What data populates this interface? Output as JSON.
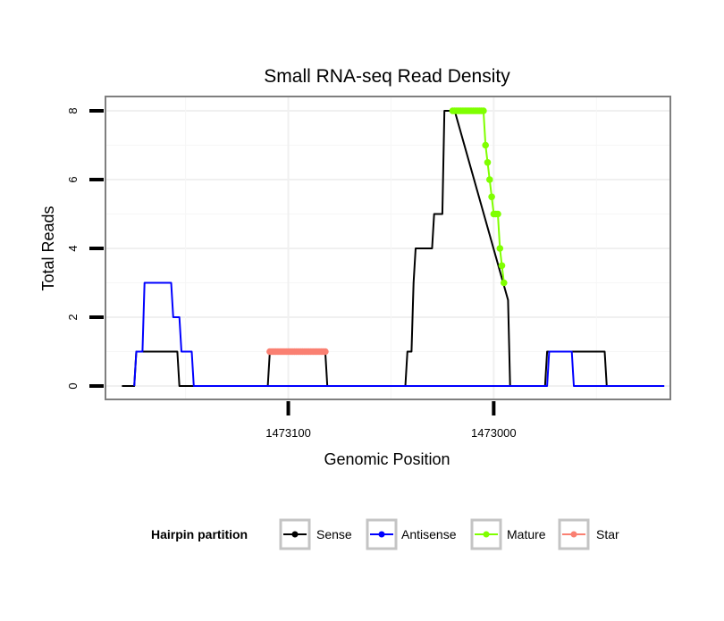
{
  "chart_data": {
    "type": "line",
    "title": "Small RNA-seq Read Density",
    "xlabel": "Genomic Position",
    "ylabel": "Total Reads",
    "xlim": [
      1473189,
      1472914
    ],
    "ylim": [
      0,
      8
    ],
    "x_reversed": true,
    "grid": true,
    "x_ticks": [
      1473100,
      1473000
    ],
    "x_tick_labels": [
      "1473100",
      "1473000"
    ],
    "y_ticks": [
      0,
      2,
      4,
      6,
      8
    ],
    "y_tick_labels": [
      "0",
      "2",
      "4",
      "6",
      "8"
    ],
    "legend": {
      "title": "Hairpin partition",
      "position": "bottom",
      "entries": [
        {
          "name": "Sense",
          "color": "#000000"
        },
        {
          "name": "Antisense",
          "color": "#0000ff"
        },
        {
          "name": "Mature",
          "color": "#7fff00"
        },
        {
          "name": "Star",
          "color": "#fa8072"
        }
      ]
    },
    "series": [
      {
        "name": "Sense",
        "color": "#000000",
        "style": "line",
        "x": [
          1473181,
          1473175,
          1473174,
          1473173,
          1473154,
          1473153,
          1473110,
          1473109,
          1473082,
          1473081,
          1473043,
          1473042,
          1473040,
          1473039,
          1473038,
          1473037,
          1473030,
          1473029,
          1473025,
          1473024,
          1473020,
          1473019,
          1472993,
          1472992,
          1472975,
          1472974,
          1472956,
          1472955,
          1472946,
          1472945,
          1472917
        ],
        "y": [
          0,
          0,
          1,
          1,
          1,
          0,
          0,
          1,
          1,
          0,
          0,
          1,
          1,
          3,
          4,
          4,
          4,
          5,
          5,
          8,
          8,
          8,
          2.5,
          0,
          0,
          1,
          1,
          1,
          1,
          0,
          0
        ]
      },
      {
        "name": "Antisense",
        "color": "#0000ff",
        "style": "line",
        "x": [
          1473175,
          1473174,
          1473171,
          1473170,
          1473157,
          1473156,
          1473153,
          1473152,
          1473150,
          1473149,
          1473147,
          1473146,
          1472974,
          1472973,
          1472962,
          1472961,
          1472917
        ],
        "y": [
          0,
          1,
          1,
          3,
          3,
          2,
          2,
          1,
          1,
          1,
          1,
          0,
          0,
          1,
          1,
          0,
          0
        ]
      },
      {
        "name": "Mature",
        "color": "#7fff00",
        "style": "points",
        "x": [
          1473020,
          1473019,
          1473018,
          1473017,
          1473016,
          1473015,
          1473014,
          1473013,
          1473012,
          1473011,
          1473010,
          1473009,
          1473008,
          1473007,
          1473006,
          1473005,
          1473004,
          1473003,
          1473002,
          1473001,
          1473000,
          1472999,
          1472998,
          1472997,
          1472996,
          1472995
        ],
        "y": [
          8,
          8,
          8,
          8,
          8,
          8,
          8,
          8,
          8,
          8,
          8,
          8,
          8,
          8,
          8,
          8,
          7,
          6.5,
          6,
          5.5,
          5,
          5,
          5,
          4,
          3.5,
          3
        ]
      },
      {
        "name": "Star",
        "color": "#fa8072",
        "style": "points",
        "x": [
          1473109,
          1473108,
          1473107,
          1473106,
          1473105,
          1473104,
          1473103,
          1473102,
          1473101,
          1473100,
          1473099,
          1473098,
          1473097,
          1473096,
          1473095,
          1473094,
          1473093,
          1473092,
          1473091,
          1473090,
          1473089,
          1473088,
          1473087,
          1473086,
          1473085,
          1473084,
          1473083,
          1473082
        ],
        "y": [
          1,
          1,
          1,
          1,
          1,
          1,
          1,
          1,
          1,
          1,
          1,
          1,
          1,
          1,
          1,
          1,
          1,
          1,
          1,
          1,
          1,
          1,
          1,
          1,
          1,
          1,
          1,
          1
        ]
      }
    ]
  }
}
